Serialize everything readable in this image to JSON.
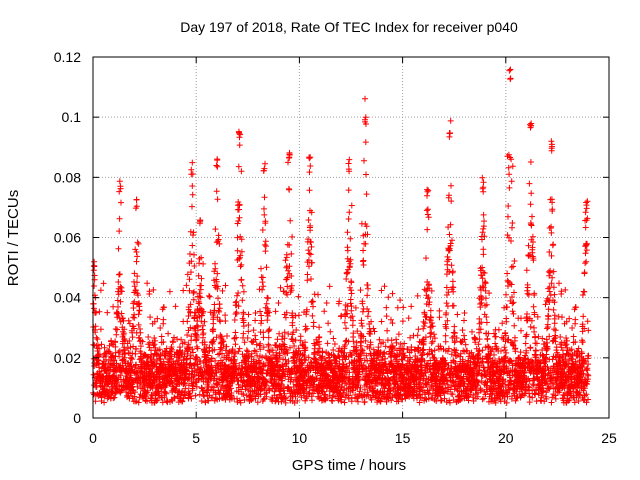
{
  "chart_data": {
    "type": "scatter",
    "title": "Day 197 of 2018, Rate Of TEC Index for receiver p040",
    "xlabel": "GPS time / hours",
    "ylabel": "ROTI / TECUs",
    "xlim": [
      0,
      25
    ],
    "ylim": [
      0,
      0.12
    ],
    "xticks": [
      0,
      5,
      10,
      15,
      20,
      25
    ],
    "xtick_labels": [
      "0",
      "5",
      "10",
      "15",
      "20",
      "25"
    ],
    "yticks": [
      0,
      0.02,
      0.04,
      0.06,
      0.08,
      0.1,
      0.12
    ],
    "ytick_labels": [
      "0",
      "0.02",
      "0.04",
      "0.06",
      "0.08",
      "0.1",
      "0.12"
    ],
    "grid": true,
    "marker": "+",
    "color": "#ff0000",
    "series": [
      {
        "name": "ROTI",
        "peaks": [
          {
            "x": 0.05,
            "y": 0.052
          },
          {
            "x": 1.3,
            "y": 0.079
          },
          {
            "x": 2.1,
            "y": 0.073
          },
          {
            "x": 4.8,
            "y": 0.085
          },
          {
            "x": 5.2,
            "y": 0.066
          },
          {
            "x": 6.0,
            "y": 0.087
          },
          {
            "x": 7.1,
            "y": 0.097
          },
          {
            "x": 8.3,
            "y": 0.085
          },
          {
            "x": 9.5,
            "y": 0.09
          },
          {
            "x": 10.5,
            "y": 0.087
          },
          {
            "x": 12.4,
            "y": 0.086
          },
          {
            "x": 13.2,
            "y": 0.1
          },
          {
            "x": 16.2,
            "y": 0.077
          },
          {
            "x": 17.3,
            "y": 0.096
          },
          {
            "x": 18.9,
            "y": 0.08
          },
          {
            "x": 20.2,
            "y": 0.116
          },
          {
            "x": 21.2,
            "y": 0.1
          },
          {
            "x": 22.2,
            "y": 0.091
          },
          {
            "x": 23.9,
            "y": 0.072
          }
        ]
      }
    ]
  }
}
